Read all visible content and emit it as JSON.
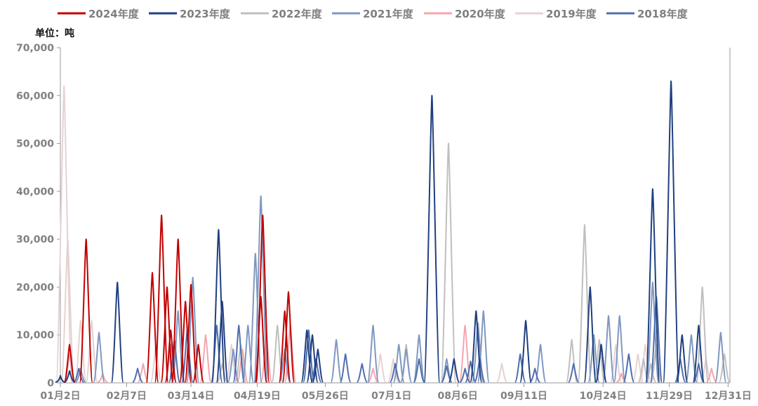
{
  "chart_data": {
    "type": "line",
    "unit_label": "单位：吨",
    "ylim": [
      0,
      70000
    ],
    "y_ticks": [
      {
        "value": 0,
        "label": "0"
      },
      {
        "value": 10000,
        "label": "10,000"
      },
      {
        "value": 20000,
        "label": "20,000"
      },
      {
        "value": 30000,
        "label": "30,000"
      },
      {
        "value": 40000,
        "label": "40,000"
      },
      {
        "value": 50000,
        "label": "50,000"
      },
      {
        "value": 60000,
        "label": "60,000"
      },
      {
        "value": 70000,
        "label": "70,000"
      }
    ],
    "x_domain": [
      2,
      366
    ],
    "x_ticks": [
      {
        "day": 2,
        "label": "01月2日"
      },
      {
        "day": 38,
        "label": "02月7日"
      },
      {
        "day": 73,
        "label": "03月14日"
      },
      {
        "day": 109,
        "label": "04月19日"
      },
      {
        "day": 146,
        "label": "05月26日"
      },
      {
        "day": 182,
        "label": "07月1日"
      },
      {
        "day": 218,
        "label": "08月6日"
      },
      {
        "day": 254,
        "label": "09月11日"
      },
      {
        "day": 297,
        "label": "10月24日"
      },
      {
        "day": 333,
        "label": "11月29日"
      },
      {
        "day": 365,
        "label": "12月31日"
      }
    ],
    "grid": false,
    "legend_position": "top",
    "series": [
      {
        "name": "2024年度",
        "color": "#c00000",
        "points": [
          [
            7,
            8000
          ],
          [
            16,
            30000
          ],
          [
            52,
            23000
          ],
          [
            57,
            35000
          ],
          [
            60,
            20000
          ],
          [
            62,
            11000
          ],
          [
            66,
            30000
          ],
          [
            70,
            17000
          ],
          [
            73,
            20500
          ],
          [
            77,
            8000
          ],
          [
            112,
            35000
          ],
          [
            111,
            18000
          ],
          [
            126,
            19000
          ],
          [
            124,
            15000
          ]
        ]
      },
      {
        "name": "2023年度",
        "color": "#1f3f7f",
        "points": [
          [
            2,
            1500
          ],
          [
            7,
            2500
          ],
          [
            33,
            21000
          ],
          [
            88,
            32000
          ],
          [
            90,
            17000
          ],
          [
            136,
            11000
          ],
          [
            139,
            10000
          ],
          [
            142,
            7000
          ],
          [
            204,
            60000
          ],
          [
            216,
            5000
          ],
          [
            228,
            15000
          ],
          [
            255,
            13000
          ],
          [
            290,
            20000
          ],
          [
            296,
            8000
          ],
          [
            324,
            40500
          ],
          [
            334,
            63000
          ],
          [
            340,
            10000
          ],
          [
            349,
            12000
          ]
        ]
      },
      {
        "name": "2022年度",
        "color": "#bfbfbf",
        "points": [
          [
            120,
            12000
          ],
          [
            190,
            8000
          ],
          [
            213,
            50000
          ],
          [
            295,
            9000
          ],
          [
            319,
            5000
          ],
          [
            326,
            8000
          ],
          [
            280,
            9000
          ],
          [
            287,
            33000
          ],
          [
            323,
            4000
          ],
          [
            351,
            20000
          ],
          [
            363,
            6000
          ],
          [
            100,
            8000
          ],
          [
            90,
            4000
          ]
        ]
      },
      {
        "name": "2021年度",
        "color": "#7f98c1",
        "points": [
          [
            13,
            3000
          ],
          [
            23,
            10500
          ],
          [
            66,
            15000
          ],
          [
            74,
            22000
          ],
          [
            96,
            7000
          ],
          [
            104,
            12000
          ],
          [
            108,
            27000
          ],
          [
            111,
            39000
          ],
          [
            124,
            7000
          ],
          [
            152,
            9000
          ],
          [
            172,
            12000
          ],
          [
            186,
            8000
          ],
          [
            190,
            7000
          ],
          [
            197,
            10000
          ],
          [
            212,
            5000
          ],
          [
            229,
            12500
          ],
          [
            232,
            15000
          ],
          [
            263,
            8000
          ],
          [
            292,
            10000
          ],
          [
            300,
            14000
          ],
          [
            306,
            14000
          ],
          [
            324,
            21000
          ],
          [
            345,
            10000
          ],
          [
            361,
            10500
          ]
        ]
      },
      {
        "name": "2020年度",
        "color": "#f4a6ae",
        "points": [
          [
            7,
            6000
          ],
          [
            25,
            2000
          ],
          [
            47,
            4000
          ],
          [
            62,
            8000
          ],
          [
            81,
            10000
          ],
          [
            101,
            7000
          ],
          [
            114,
            10000
          ],
          [
            127,
            12000
          ],
          [
            172,
            3000
          ],
          [
            222,
            12000
          ],
          [
            307,
            2000
          ],
          [
            356,
            3000
          ]
        ]
      },
      {
        "name": "2019年度",
        "color": "#e6d2d2",
        "points": [
          [
            4,
            62000
          ],
          [
            6,
            30000
          ],
          [
            13,
            13000
          ],
          [
            19,
            13000
          ],
          [
            54,
            8000
          ],
          [
            95,
            8000
          ],
          [
            176,
            6000
          ],
          [
            183,
            5000
          ],
          [
            242,
            4000
          ],
          [
            304,
            8000
          ],
          [
            316,
            6000
          ],
          [
            320,
            8000
          ],
          [
            353,
            5000
          ]
        ]
      },
      {
        "name": "2018年度",
        "color": "#4f6fae",
        "points": [
          [
            12,
            3000
          ],
          [
            44,
            3000
          ],
          [
            64,
            9000
          ],
          [
            71,
            11000
          ],
          [
            87,
            12000
          ],
          [
            99,
            12000
          ],
          [
            137,
            11000
          ],
          [
            141,
            5000
          ],
          [
            157,
            6000
          ],
          [
            166,
            4000
          ],
          [
            184,
            4000
          ],
          [
            197,
            5000
          ],
          [
            212,
            3500
          ],
          [
            222,
            3000
          ],
          [
            225,
            4500
          ],
          [
            230,
            5000
          ],
          [
            252,
            6000
          ],
          [
            260,
            3000
          ],
          [
            281,
            4000
          ],
          [
            296,
            8000
          ],
          [
            311,
            6000
          ],
          [
            326,
            18000
          ],
          [
            339,
            5000
          ],
          [
            349,
            4000
          ]
        ]
      }
    ]
  }
}
